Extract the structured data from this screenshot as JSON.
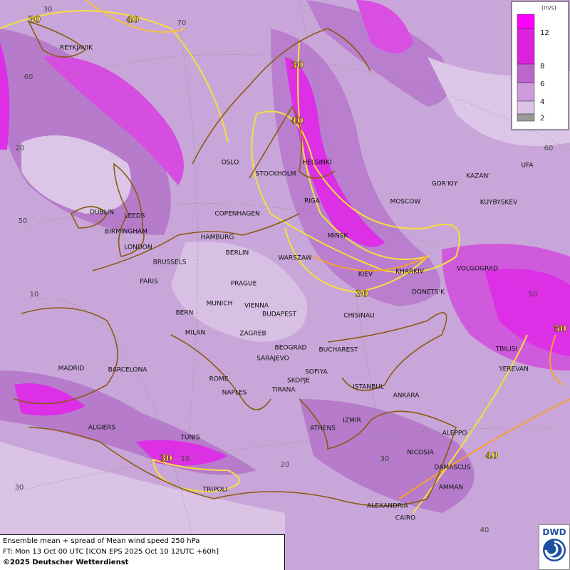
{
  "map": {
    "cities": [
      "REYKJAVIK",
      "OSLO",
      "STOCKHOLM",
      "HELSINKI",
      "DUBLIN",
      "LEEDS",
      "BIRMINGHAM",
      "LONDON",
      "COPENHAGEN",
      "RIGA",
      "MOSCOW",
      "GOR'KIY",
      "KAZAN'",
      "UFA",
      "KUYBYSKEV",
      "HAMBURG",
      "BERLIN",
      "MINSK",
      "WARSZAW",
      "KIEV",
      "KHARKIV",
      "VOLGOGRAD",
      "BRUSSELS",
      "PARIS",
      "PRAGUE",
      "DONETS'K",
      "MUNICH",
      "VIENNA",
      "BUDAPEST",
      "BERN",
      "CHISINAU",
      "MILAN",
      "ZAGREB",
      "BEOGRAD",
      "BUCHAREST",
      "TBILISI",
      "SARAJEVO",
      "YEREVAN",
      "MADRID",
      "BARCELONA",
      "SOFIYA",
      "ROME",
      "SKOPJE",
      "TIRANA",
      "NAPLES",
      "ISTANBUL",
      "ANKARA",
      "ALGIERS",
      "IZMIR",
      "ATHENS",
      "ALEPPO",
      "TUNIS",
      "NICOSIA",
      "DAMASCUS",
      "TRIPOLI",
      "AMMAN",
      "ALEXANDRIA",
      "CAIRO"
    ],
    "contour_labels": [
      30,
      40,
      30,
      40,
      30,
      50,
      40,
      30
    ],
    "grid_labels": [
      30,
      70,
      60,
      20,
      60,
      50,
      10,
      50,
      10,
      20,
      30,
      40,
      30
    ],
    "legend": {
      "unit": "(m/s)",
      "ticks": [
        12,
        8,
        6,
        4,
        2
      ]
    },
    "footer": {
      "line1": "Ensemble mean + spread of Mean wind speed 250 hPa",
      "line2": "FT: Mon 13 Oct 00 UTC [ICON EPS 2025 Oct 10 12UTC +60h]",
      "line3": "©2025 Deutscher Wetterdienst"
    },
    "logo": "DWD"
  }
}
